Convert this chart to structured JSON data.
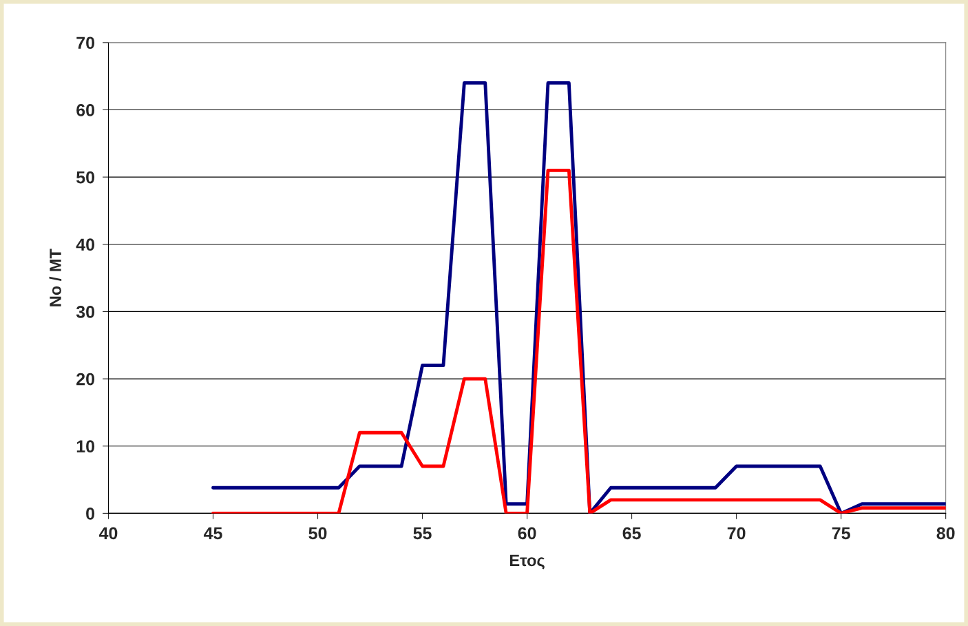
{
  "chart_data": {
    "type": "line",
    "xlabel": "Ετος",
    "ylabel": "No / MT",
    "x": [
      45,
      46,
      47,
      48,
      49,
      50,
      51,
      52,
      53,
      54,
      55,
      56,
      57,
      58,
      59,
      60,
      61,
      62,
      63,
      64,
      65,
      66,
      67,
      68,
      69,
      70,
      71,
      72,
      73,
      74,
      75,
      76,
      77,
      78,
      79,
      80
    ],
    "series": [
      {
        "color": "#000080",
        "values": [
          3.8,
          3.8,
          3.8,
          3.8,
          3.8,
          3.8,
          3.8,
          7,
          7,
          7,
          22,
          22,
          64,
          64,
          1.4,
          1.4,
          64,
          64,
          0,
          3.8,
          3.8,
          3.8,
          3.8,
          3.8,
          3.8,
          7,
          7,
          7,
          7,
          7,
          0,
          1.4,
          1.4,
          1.4,
          1.4,
          1.4
        ]
      },
      {
        "color": "#ff0000",
        "values": [
          0,
          0,
          0,
          0,
          0,
          0,
          0,
          12,
          12,
          12,
          7,
          7,
          20,
          20,
          0,
          0,
          51,
          51,
          0,
          2,
          2,
          2,
          2,
          2,
          2,
          2,
          2,
          2,
          2,
          2,
          0,
          0.8,
          0.8,
          0.8,
          0.8,
          0.8
        ]
      }
    ],
    "xlim": [
      40,
      80
    ],
    "xticks": [
      40,
      45,
      50,
      55,
      60,
      65,
      70,
      75,
      80
    ],
    "ylim": [
      0,
      70
    ],
    "yticks": [
      0,
      10,
      20,
      30,
      40,
      50,
      60,
      70
    ],
    "grid": "y",
    "marker": "none",
    "line_style": "solid"
  }
}
